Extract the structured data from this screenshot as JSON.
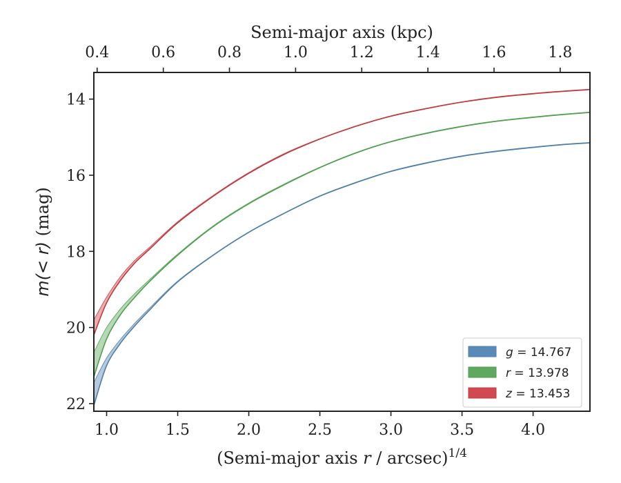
{
  "chart_data": {
    "type": "line",
    "xlabel_main": "(Semi-major axis ",
    "xlabel_var": "r",
    "xlabel_unit": " / arcsec)",
    "xlabel_sup": "1/4",
    "xlabel_top": "Semi-major axis (kpc)",
    "ylabel_prefix": "m",
    "ylabel_var": "(< r)",
    "ylabel_unit": " (mag)",
    "xlim": [
      0.91,
      4.4
    ],
    "ylim": [
      22.2,
      13.3
    ],
    "xlim_top": [
      0.39,
      1.89
    ],
    "x_ticks": [
      1.0,
      1.5,
      2.0,
      2.5,
      3.0,
      3.5,
      4.0
    ],
    "x_tick_labels": [
      "1.0",
      "1.5",
      "2.0",
      "2.5",
      "3.0",
      "3.5",
      "4.0"
    ],
    "y_ticks": [
      14,
      16,
      18,
      20,
      22
    ],
    "y_tick_labels": [
      "14",
      "16",
      "18",
      "20",
      "22"
    ],
    "x_top_ticks": [
      0.4,
      0.6,
      0.8,
      1.0,
      1.2,
      1.4,
      1.6,
      1.8
    ],
    "x_top_tick_labels": [
      "0.4",
      "0.6",
      "0.8",
      "1.0",
      "1.2",
      "1.4",
      "1.6",
      "1.8"
    ],
    "grid": false,
    "legend_position": "bottom-right",
    "series": [
      {
        "name": "g = 14.767",
        "label_var": "g",
        "label_value": "14.767",
        "color": "#4e7ea8",
        "fill": "#5a8ab8",
        "x": [
          0.91,
          1.0,
          1.1,
          1.2,
          1.3,
          1.5,
          1.75,
          2.0,
          2.25,
          2.5,
          2.75,
          3.0,
          3.25,
          3.5,
          3.75,
          4.0,
          4.2,
          4.4
        ],
        "y": [
          22.05,
          21.0,
          20.4,
          19.95,
          19.55,
          18.8,
          18.1,
          17.5,
          17.0,
          16.55,
          16.2,
          15.9,
          15.68,
          15.5,
          15.37,
          15.27,
          15.2,
          15.15
        ],
        "y_upper": [
          21.45,
          20.8,
          20.3,
          19.88,
          19.5,
          18.78,
          18.09,
          17.49,
          16.99,
          16.54,
          16.19,
          15.89,
          15.67,
          15.49,
          15.36,
          15.26,
          15.19,
          15.14
        ]
      },
      {
        "name": "r = 13.978",
        "label_var": "r",
        "label_value": "13.978",
        "color": "#4e9e4e",
        "fill": "#5fa85f",
        "x": [
          0.91,
          1.0,
          1.1,
          1.2,
          1.3,
          1.5,
          1.75,
          2.0,
          2.25,
          2.5,
          2.75,
          3.0,
          3.25,
          3.5,
          3.75,
          4.0,
          4.2,
          4.4
        ],
        "y": [
          21.3,
          20.3,
          19.65,
          19.2,
          18.8,
          18.1,
          17.35,
          16.75,
          16.25,
          15.8,
          15.42,
          15.12,
          14.9,
          14.72,
          14.58,
          14.48,
          14.41,
          14.35
        ],
        "y_upper": [
          20.65,
          20.0,
          19.5,
          19.1,
          18.75,
          18.07,
          17.33,
          16.73,
          16.23,
          15.79,
          15.41,
          15.11,
          14.89,
          14.71,
          14.57,
          14.47,
          14.4,
          14.34
        ]
      },
      {
        "name": "z = 13.453",
        "label_var": "z",
        "label_value": "13.453",
        "color": "#c0393e",
        "fill": "#d04a4f",
        "x": [
          0.91,
          1.0,
          1.1,
          1.2,
          1.3,
          1.5,
          1.75,
          2.0,
          2.25,
          2.5,
          2.75,
          3.0,
          3.25,
          3.5,
          3.75,
          4.0,
          4.2,
          4.4
        ],
        "y": [
          20.2,
          19.35,
          18.75,
          18.3,
          17.95,
          17.25,
          16.55,
          15.95,
          15.45,
          15.05,
          14.72,
          14.45,
          14.25,
          14.08,
          13.95,
          13.86,
          13.8,
          13.75
        ],
        "y_upper": [
          19.8,
          19.2,
          18.65,
          18.23,
          17.9,
          17.22,
          16.53,
          15.93,
          15.43,
          15.04,
          14.71,
          14.44,
          14.24,
          14.07,
          13.94,
          13.85,
          13.79,
          13.74
        ]
      }
    ]
  }
}
